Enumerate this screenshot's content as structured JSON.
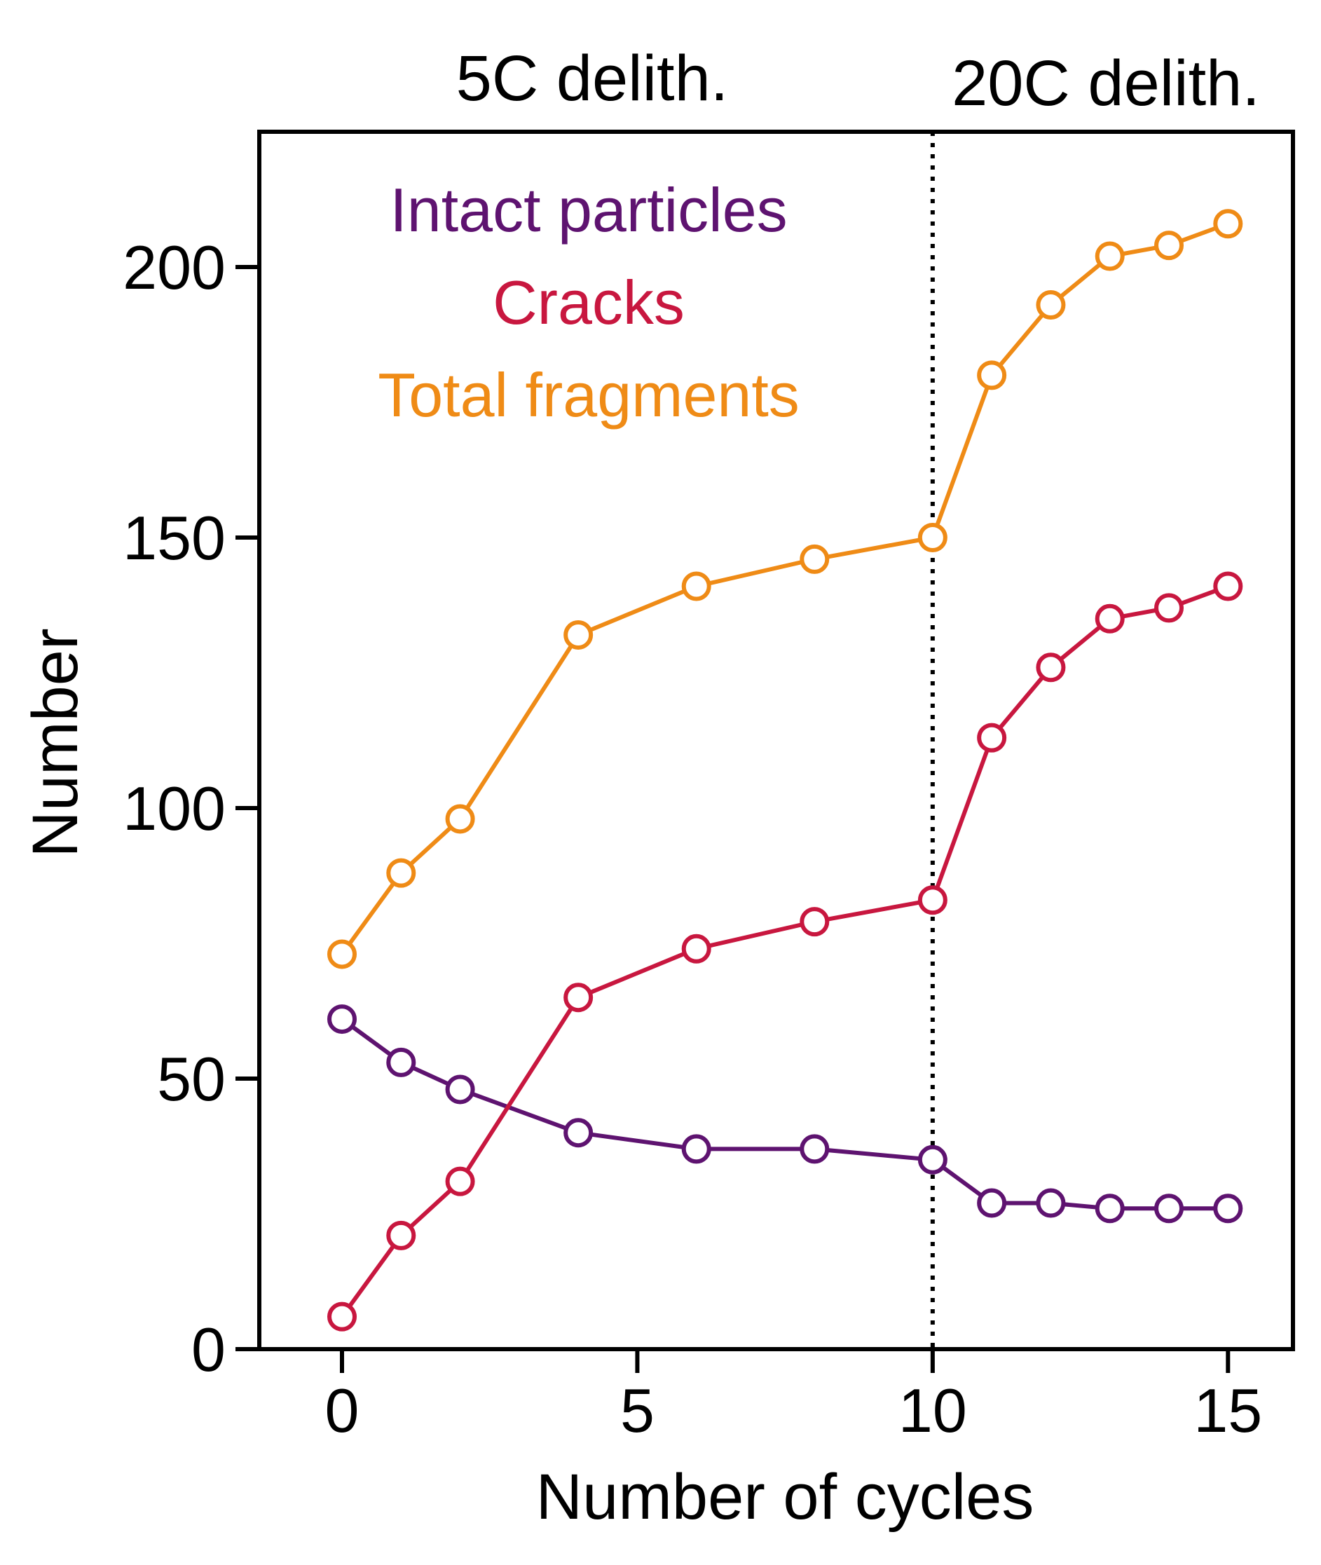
{
  "chart_data": {
    "type": "line",
    "xlabel": "Number of cycles",
    "ylabel": "Number",
    "xlim": [
      -1.4,
      16.1
    ],
    "ylim": [
      0,
      225
    ],
    "xticks": [
      0,
      5,
      10,
      15
    ],
    "yticks": [
      0,
      50,
      100,
      150,
      200
    ],
    "xtick_labels": [
      "0",
      "5",
      "10",
      "15"
    ],
    "ytick_labels": [
      "0",
      "50",
      "100",
      "150",
      "200"
    ],
    "grid": false,
    "legend_placement": "top-center",
    "region_labels": {
      "left": "5C delith.",
      "right": "20C delith."
    },
    "divider_x": 10,
    "x": [
      0,
      1,
      2,
      4,
      6,
      8,
      10,
      11,
      12,
      13,
      14,
      15
    ],
    "series": [
      {
        "name": "Intact particles",
        "color": "#5e1370",
        "values": [
          61,
          53,
          48,
          40,
          37,
          37,
          35,
          27,
          27,
          26,
          26,
          26
        ]
      },
      {
        "name": "Cracks",
        "color": "#c8173f",
        "values": [
          6,
          21,
          31,
          65,
          74,
          79,
          83,
          113,
          126,
          135,
          137,
          141
        ]
      },
      {
        "name": "Total fragments",
        "color": "#ef8b16",
        "values": [
          73,
          88,
          98,
          132,
          141,
          146,
          150,
          180,
          193,
          202,
          204,
          208
        ]
      }
    ]
  }
}
